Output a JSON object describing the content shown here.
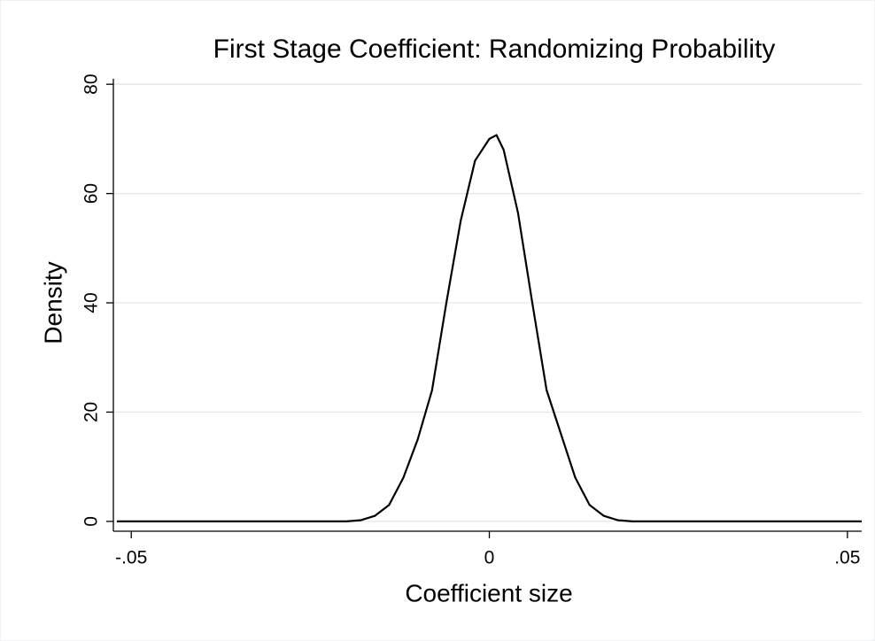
{
  "chart_data": {
    "type": "line",
    "title": "First Stage Coefficient: Randomizing Probability",
    "x_label": "Coefficient size",
    "y_label": "Density",
    "x": [
      -0.052,
      -0.02,
      -0.018,
      -0.016,
      -0.014,
      -0.012,
      -0.01,
      -0.008,
      -0.006,
      -0.004,
      -0.002,
      0,
      0.001,
      0.002,
      0.004,
      0.006,
      0.008,
      0.01,
      0.012,
      0.014,
      0.016,
      0.018,
      0.02,
      0.052
    ],
    "series": [
      {
        "color": "#000000",
        "values": [
          0,
          0,
          0.2,
          1,
          3,
          8,
          15,
          24,
          40,
          55,
          66,
          70,
          70.7,
          68,
          56.5,
          40,
          24,
          16,
          8,
          3,
          1,
          0.2,
          0,
          0
        ]
      }
    ],
    "xlim": [
      -0.0525,
      0.052
    ],
    "ylim": [
      -1.8,
      81
    ],
    "xticks": [
      {
        "value": -0.05,
        "label": "-.05"
      },
      0,
      {
        "value": 0.05,
        "label": ".05"
      }
    ],
    "yticks": [
      0,
      20,
      40,
      60,
      80
    ],
    "grid": true
  }
}
